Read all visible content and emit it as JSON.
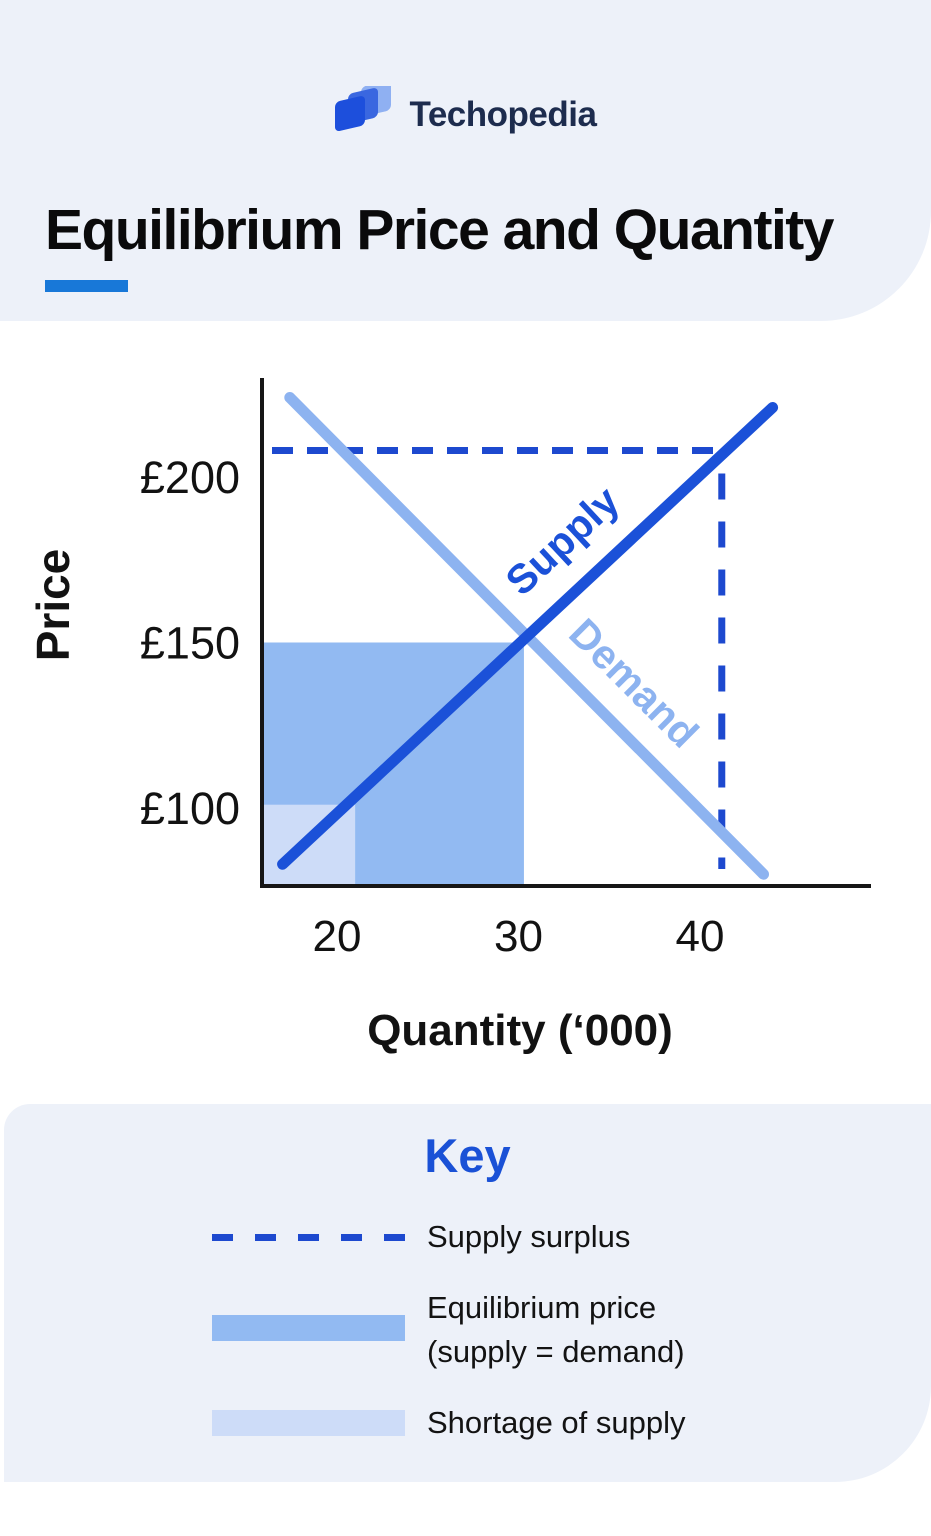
{
  "header": {
    "brand": "Techopedia",
    "title": "Equilibrium Price and Quantity"
  },
  "chart_data": {
    "type": "line",
    "title": "Equilibrium Price and Quantity",
    "xlabel": "Quantity (‘000)",
    "ylabel": "Price",
    "x_ticks": [
      20,
      30,
      40
    ],
    "y_ticks": [
      {
        "value": 200,
        "label": "£200"
      },
      {
        "value": 150,
        "label": "£150"
      },
      {
        "value": 100,
        "label": "£100"
      }
    ],
    "xlim": [
      15.8,
      49
    ],
    "ylim": [
      77,
      232
    ],
    "grid": false,
    "series": [
      {
        "name": "Supply",
        "color_key": "supply",
        "points": [
          [
            17,
            83
          ],
          [
            44,
            221
          ]
        ]
      },
      {
        "name": "Demand",
        "color_key": "demand",
        "points": [
          [
            17.4,
            224
          ],
          [
            43.5,
            80
          ]
        ]
      }
    ],
    "equilibrium": {
      "quantity": 30,
      "price": 150
    },
    "surplus_point": {
      "quantity": 41.2,
      "price": 208
    },
    "equilibrium_rect": {
      "q_max": 30.3,
      "p_max": 150
    },
    "shortage_rect": {
      "q_max": 21,
      "p_max": 101
    }
  },
  "key": {
    "title": "Key",
    "items": [
      {
        "swatch": "dashed-line",
        "label": "Supply surplus"
      },
      {
        "swatch": "medium-blue-bar",
        "label": "Equilibrium price",
        "label2": "(supply = demand)"
      },
      {
        "swatch": "light-blue-bar",
        "label": "Shortage of supply"
      }
    ]
  },
  "colors": {
    "supply": "#1b51d8",
    "demand": "#8db3f0",
    "dashed": "#1d49cf",
    "equilibrium_fill": "#92baf2",
    "shortage_fill": "#cddcf8",
    "axis": "#161616",
    "tick_text": "#121212",
    "title_underline": "#1878d8",
    "key_title": "#1a51d6",
    "panel_bg": "#edf1f9",
    "brand_text": "#1d2c4e",
    "logo_dark": "#1d4fdc",
    "logo_mid": "#3a67e0",
    "logo_light": "#8fb0f2"
  }
}
